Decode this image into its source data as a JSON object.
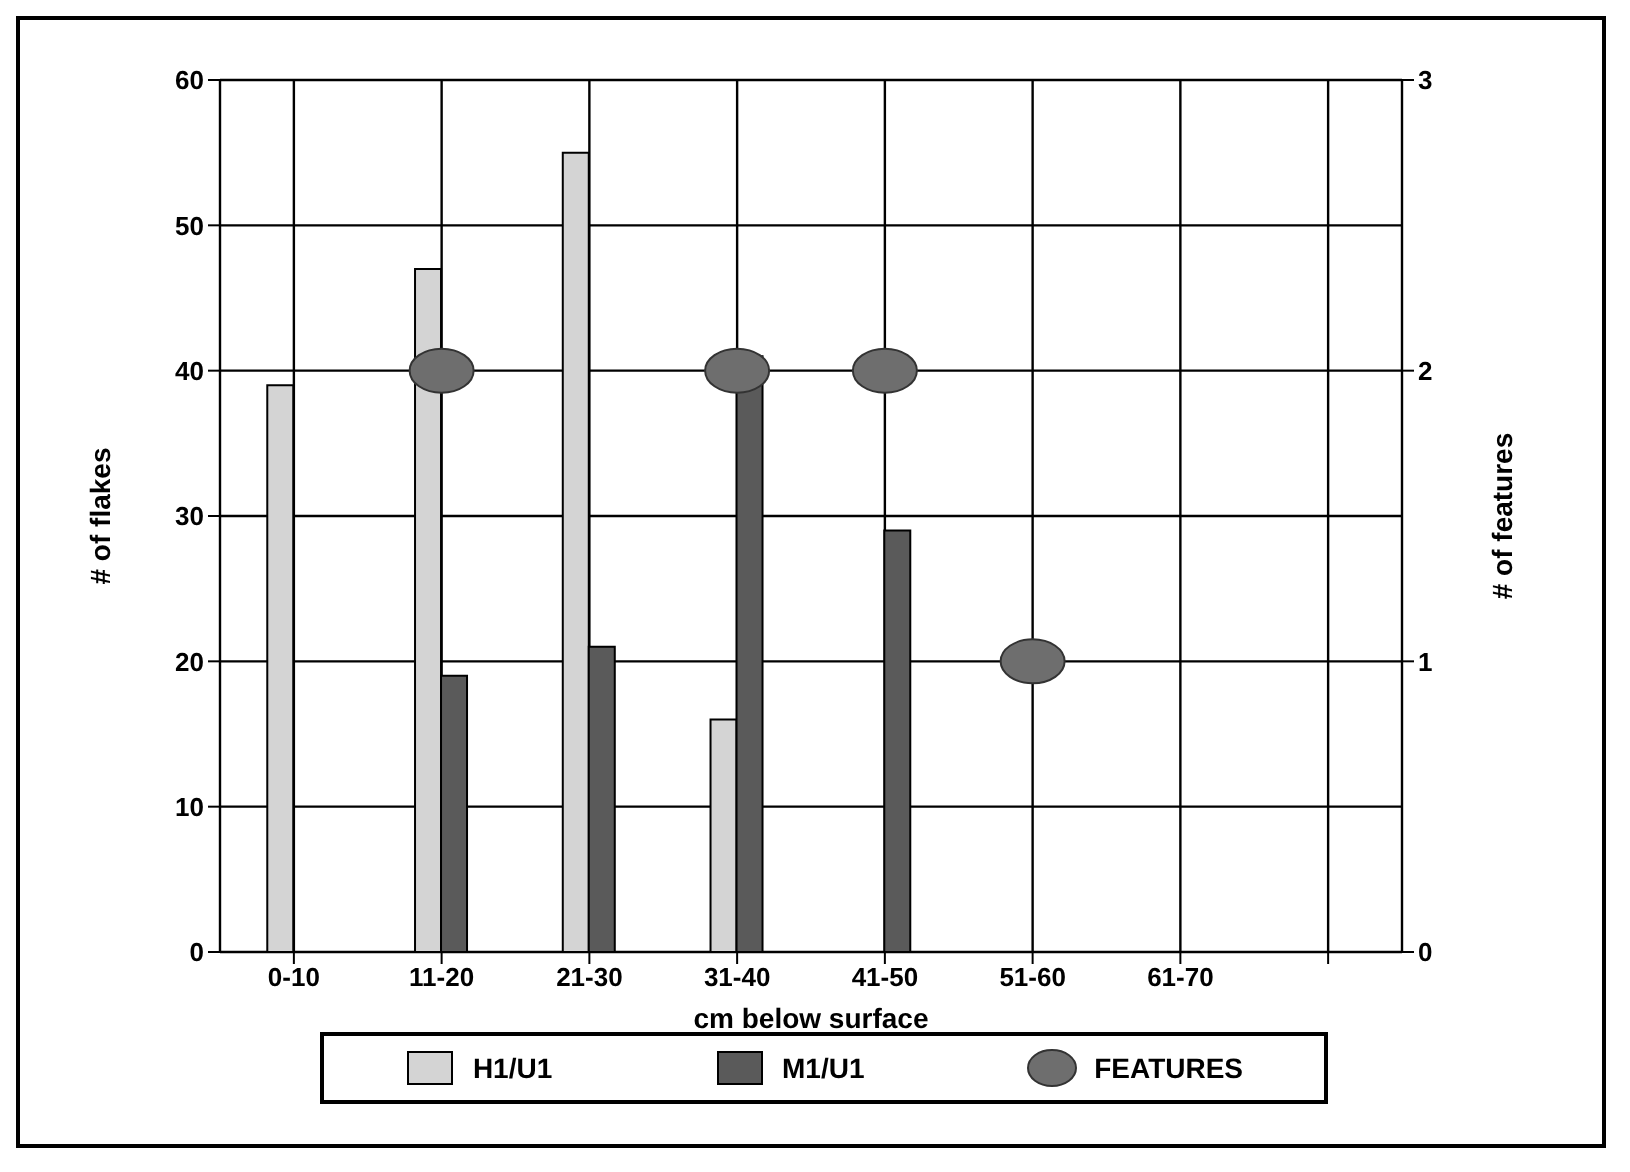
{
  "chart_data": {
    "type": "bar",
    "xlabel": "cm below surface",
    "ylabel": "# of flakes",
    "y2label": "# of features",
    "categories": [
      "0-10",
      "11-20",
      "21-30",
      "31-40",
      "41-50",
      "51-60",
      "61-70",
      null
    ],
    "series": [
      {
        "name": "H1/U1",
        "color": "#d4d4d4",
        "values": [
          39,
          47,
          55,
          16,
          null,
          null,
          null,
          null
        ]
      },
      {
        "name": "M1/U1",
        "color": "#5a5a5a",
        "values": [
          null,
          19,
          21,
          41,
          29,
          null,
          null,
          null
        ]
      },
      {
        "name": "FEATURES",
        "type": "scatter",
        "axis": "y2",
        "color": "#6e6e6e",
        "marker": "circle",
        "values": [
          null,
          2,
          null,
          2,
          2,
          1,
          null,
          null
        ]
      }
    ],
    "ylim": [
      0,
      60
    ],
    "yticks": [
      0,
      10,
      20,
      30,
      40,
      50,
      60
    ],
    "y2lim": [
      0,
      3
    ],
    "y2ticks": [
      0,
      1,
      2,
      3
    ],
    "grid": true,
    "legend": "bottom"
  }
}
